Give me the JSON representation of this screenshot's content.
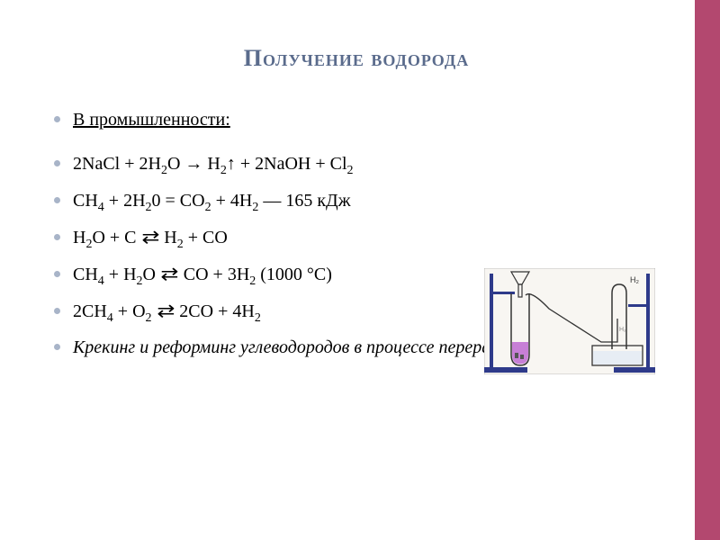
{
  "style": {
    "border_color": "#b3486f",
    "title_color": "#5a6b8c",
    "title_fontsize": 26,
    "body_fontsize": 20,
    "bullet_color": "#a8b4c8",
    "text_color": "#000000",
    "background": "#ffffff",
    "diagram": {
      "liquid_color": "#c77fd6",
      "stand_color": "#2e3a8a",
      "tube_stroke": "#333333",
      "label": "H₂"
    }
  },
  "title": "Получение водорода",
  "subtitle": "В промышленности:",
  "equations": [
    "2NaCl + 2H₂O → H₂↑ + 2NaOH + Cl₂",
    "CH₄ + 2H₂0 = CO₂ + 4H₂ — 165 кДж",
    "H₂O + C ⇄ H₂ + CO",
    "CH₄ + H₂O ⇄ CO + 3H₂ (1000 °C)",
    "2CH₄ + O₂ ⇄ 2CO + 4H₂"
  ],
  "footer": "Крекинг и реформинг углеводородов в процессе переработки нефти"
}
